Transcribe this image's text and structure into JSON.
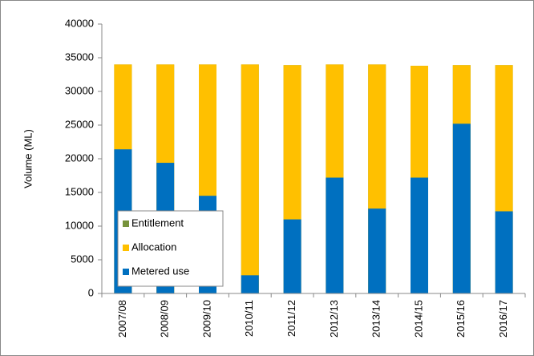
{
  "chart_data": {
    "type": "bar",
    "overlap": true,
    "ylabel": "Volume (ML)",
    "categories": [
      "2007/08",
      "2008/09",
      "2009/10",
      "2010/11",
      "2011/12",
      "2012/13",
      "2013/14",
      "2014/15",
      "2015/16",
      "2016/17"
    ],
    "series": [
      {
        "name": "Entitlement",
        "color": "#77933c",
        "values": [
          34000,
          34000,
          34000,
          34000,
          33900,
          34000,
          34000,
          33800,
          33900,
          33900
        ]
      },
      {
        "name": "Allocation",
        "color": "#ffc000",
        "values": [
          34000,
          34000,
          34000,
          34000,
          33900,
          34000,
          34000,
          33800,
          33900,
          33900
        ]
      },
      {
        "name": "Metered use",
        "color": "#0070c0",
        "values": [
          21400,
          19400,
          14500,
          2700,
          11000,
          17200,
          12600,
          17200,
          25200,
          12200
        ]
      }
    ],
    "ylim": [
      0,
      40000
    ],
    "yticks": [
      0,
      5000,
      10000,
      15000,
      20000,
      25000,
      30000,
      35000,
      40000
    ],
    "grid": false
  }
}
